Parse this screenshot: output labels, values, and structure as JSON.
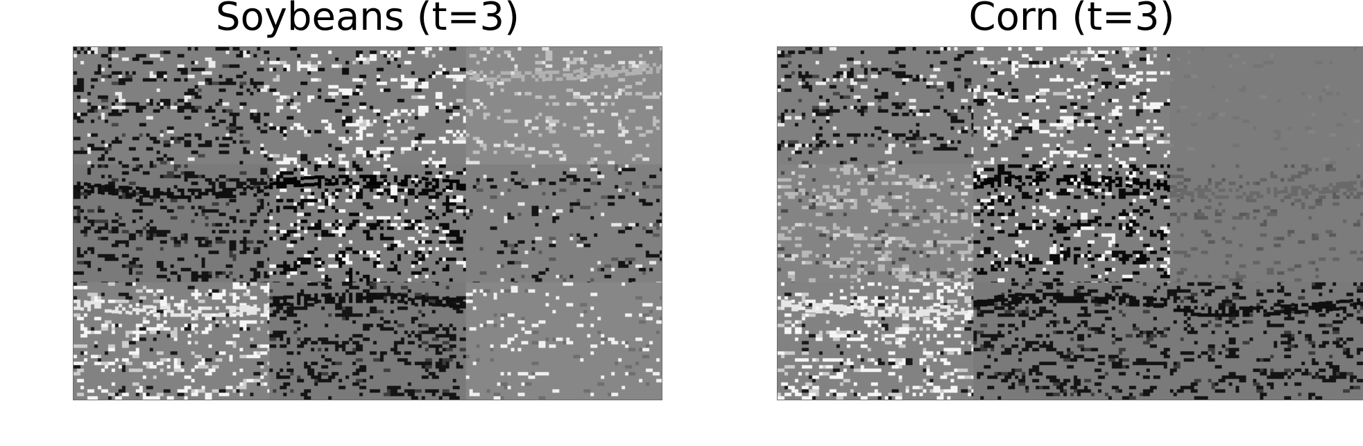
{
  "panels": [
    {
      "title": "Soybeans (t=3)",
      "image": "grayscale-texture-mosaic",
      "tiles": [
        [
          "mixed-dark",
          "mixed-light",
          "light-stripes"
        ],
        [
          "dark",
          "dark-speckle",
          "dark-sparse"
        ],
        [
          "light",
          "dark",
          "light-sparse"
        ]
      ]
    },
    {
      "title": "Corn (t=3)",
      "image": "grayscale-texture-mosaic",
      "tiles": [
        [
          "mixed-dark",
          "mixed-light",
          "flat"
        ],
        [
          "pale-speckle",
          "dark-speckle",
          "faint"
        ],
        [
          "light",
          "dark",
          "dark"
        ]
      ]
    }
  ]
}
